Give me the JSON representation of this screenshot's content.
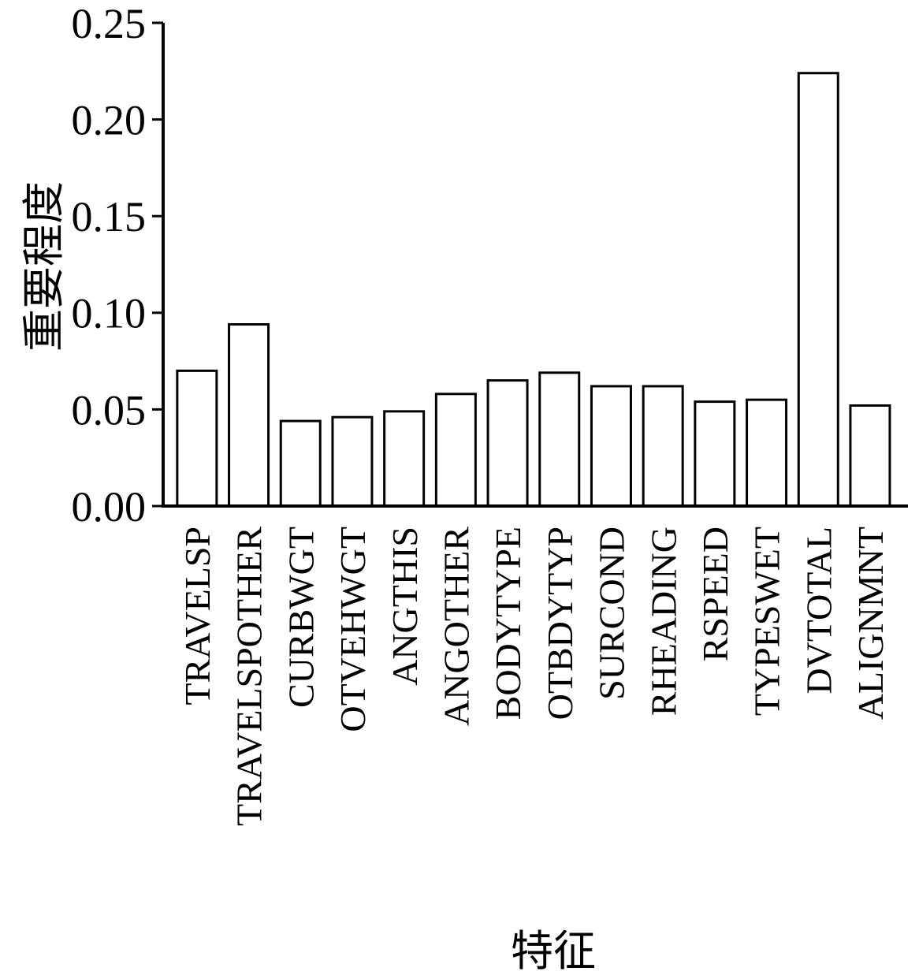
{
  "chart_data": {
    "type": "bar",
    "title": "",
    "xlabel": "特征",
    "ylabel": "重要程度",
    "categories": [
      "TRAVELSP",
      "TRAVELSPOTHER",
      "CURBWGT",
      "OTVEHWGT",
      "ANGTHIS",
      "ANGOTHER",
      "BODYTYPE",
      "OTBDYTYP",
      "SURCOND",
      "RHEADING",
      "RSPEED",
      "TYPESWET",
      "DVTOTAL",
      "ALIGNMNT"
    ],
    "values": [
      0.07,
      0.094,
      0.044,
      0.046,
      0.049,
      0.058,
      0.065,
      0.069,
      0.062,
      0.062,
      0.054,
      0.055,
      0.224,
      0.052
    ],
    "ylim": [
      0,
      0.25
    ],
    "yticks": [
      "0.00",
      "0.05",
      "0.10",
      "0.15",
      "0.20",
      "0.25"
    ],
    "grid": false,
    "legend": "none",
    "bar_fill": "#ffffff",
    "bar_stroke": "#000000"
  }
}
